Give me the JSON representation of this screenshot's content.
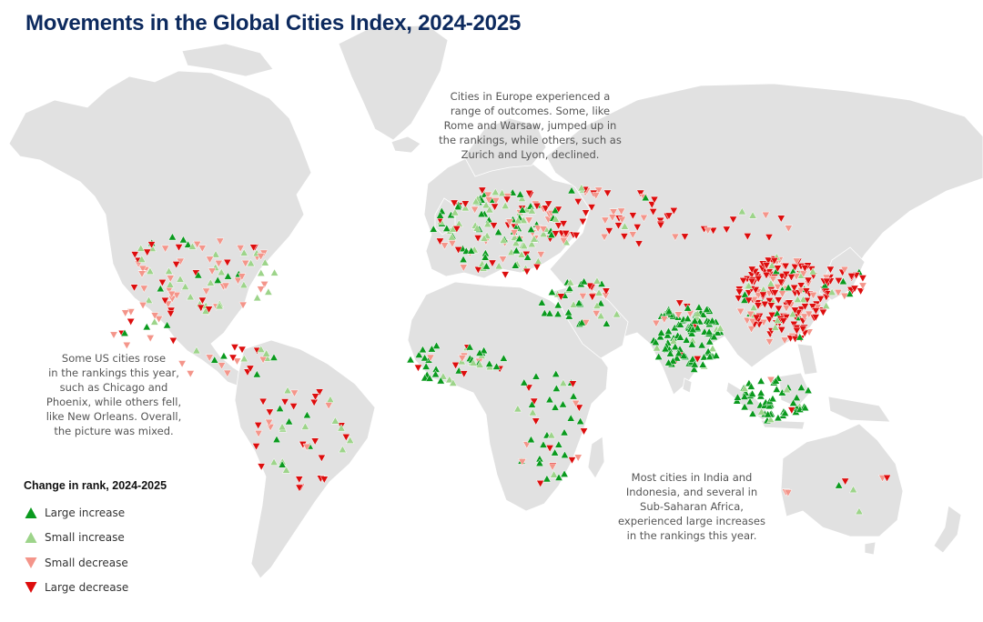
{
  "title": "Movements in the Global Cities Index, 2024-2025",
  "annotations": {
    "europe": "Cities in Europe experienced a\nrange of outcomes. Some, like\nRome and Warsaw, jumped up in\nthe rankings, while others, such as\nZurich and Lyon, declined.",
    "us": "Some US cities rose\nin the rankings this year,\nsuch as Chicago and\nPhoenix, while others fell,\nlike New Orleans. Overall,\nthe picture was mixed.",
    "india": "Most cities in India and\nIndonesia, and several in\nSub-Saharan Africa,\nexperienced large increases\nin the rankings this year."
  },
  "legend": {
    "title": "Change in rank, 2024-2025",
    "items": [
      {
        "label": "Large increase",
        "color": "#0a9a1e",
        "direction": "up"
      },
      {
        "label": "Small increase",
        "color": "#9dd48a",
        "direction": "up"
      },
      {
        "label": "Small decrease",
        "color": "#f4958a",
        "direction": "down"
      },
      {
        "label": "Large decrease",
        "color": "#dd0d0d",
        "direction": "down"
      }
    ]
  },
  "colors": {
    "land": "#e1e1e1",
    "coast": "#ffffff",
    "title": "#0d2a5e"
  }
}
